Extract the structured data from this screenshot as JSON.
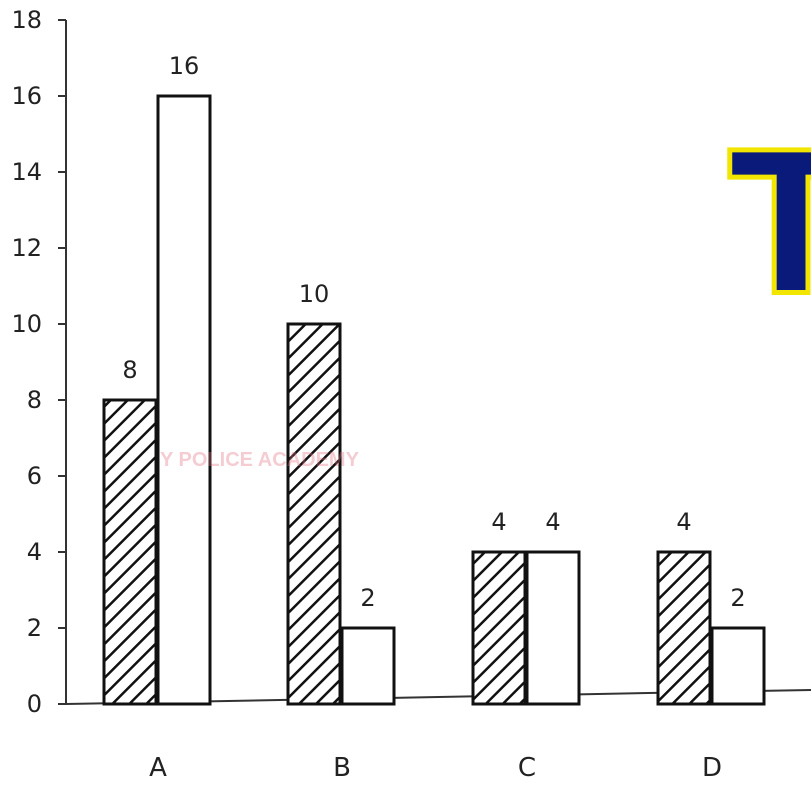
{
  "chart_data": {
    "type": "bar",
    "categories": [
      "A",
      "B",
      "C",
      "D"
    ],
    "series": [
      {
        "pattern": "hatched",
        "values": [
          8,
          10,
          4,
          4
        ]
      },
      {
        "pattern": "plain",
        "values": [
          16,
          2,
          4,
          2
        ]
      }
    ],
    "ylim": [
      0,
      18
    ],
    "yticks": [
      0,
      2,
      4,
      6,
      8,
      10,
      12,
      14,
      16,
      18
    ],
    "grid": false,
    "colors": {
      "hatch": "#111111",
      "plain_fill": "#ffffff",
      "axis": "#333333"
    }
  },
  "watermark": {
    "text": "Y POLICE  ACADEMY",
    "color": "#e07080"
  },
  "logo": {
    "text": "T",
    "fill": "#0a1a7a",
    "outline": "#f2e600"
  }
}
